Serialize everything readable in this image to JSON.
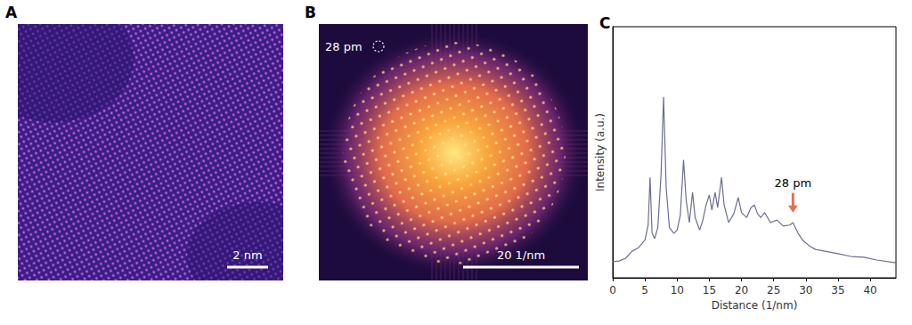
{
  "panels": [
    {
      "label": "A",
      "scale_bar": "2 nm"
    },
    {
      "label": "B",
      "annotation": "28 pm",
      "scale_bar": "20 1/nm"
    }
  ],
  "chart_data": {
    "type": "line",
    "title": "C",
    "x_label": "Distance (1/nm)",
    "y_label": "Intensity (a.u.)",
    "x": [
      0,
      1,
      2,
      3,
      4,
      5,
      5.5,
      5.8,
      6.1,
      6.5,
      7,
      7.5,
      7.9,
      8.3,
      8.8,
      9.5,
      10,
      10.5,
      11,
      11.4,
      11.9,
      12.4,
      12.8,
      13.5,
      14,
      14.5,
      15,
      15.4,
      15.9,
      16.3,
      16.9,
      17.3,
      18,
      18.8,
      19.5,
      20,
      20.8,
      21.5,
      22,
      22.5,
      23,
      23.6,
      24.5,
      25.5,
      26.5,
      27.5,
      28,
      28.8,
      29.5,
      30.5,
      31.5,
      33,
      35,
      37,
      39,
      41,
      44
    ],
    "values": [
      6.4,
      6.7,
      7.8,
      10.6,
      12,
      15,
      21,
      40,
      18,
      15.6,
      20,
      41,
      72,
      36,
      20,
      17.7,
      19,
      25,
      47,
      31,
      22,
      34,
      24,
      19,
      23,
      29,
      33,
      27,
      34,
      28,
      40,
      29,
      22,
      25.5,
      32,
      26,
      24,
      28,
      29,
      25.5,
      24,
      26,
      22,
      23,
      20.6,
      21,
      22,
      17.7,
      15,
      12.8,
      11.3,
      10.6,
      9.6,
      8.5,
      8.2,
      7.1,
      6
    ],
    "color": "#6b6f8e",
    "xlim": [
      0,
      44
    ],
    "ylim": [
      0,
      100
    ],
    "xticks": [
      0,
      5,
      10,
      15,
      20,
      25,
      30,
      35,
      40
    ],
    "grid": false,
    "tick_labels": "x",
    "annotations": [
      {
        "text": "28 pm",
        "x": 28,
        "y": 26
      }
    ]
  }
}
